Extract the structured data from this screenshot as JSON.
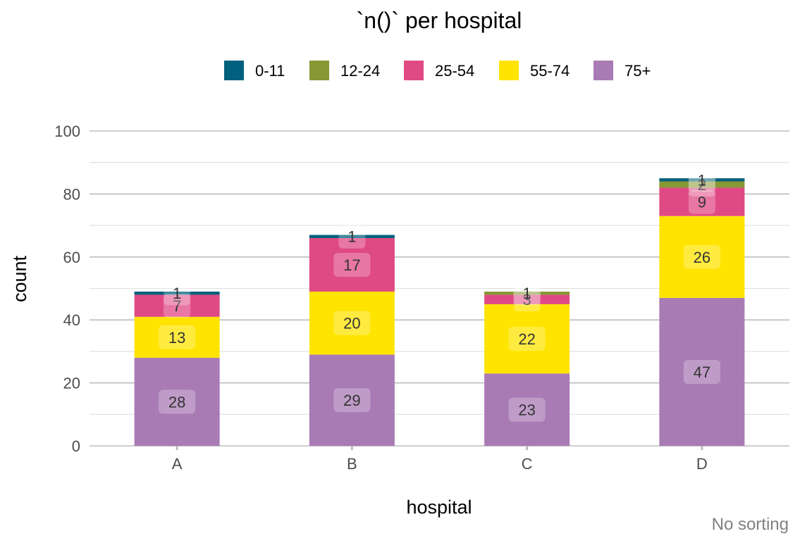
{
  "chart_data": {
    "type": "bar",
    "stacked": true,
    "title": "`n()` per hospital",
    "xlabel": "hospital",
    "ylabel": "count",
    "caption": "No sorting",
    "categories": [
      "A",
      "B",
      "C",
      "D"
    ],
    "ylim": [
      0,
      100
    ],
    "yticks": [
      0,
      20,
      40,
      60,
      80,
      100
    ],
    "grid": true,
    "legend_position": "top",
    "series": [
      {
        "name": "75+",
        "color": "#A87BB5",
        "values": [
          28,
          29,
          23,
          47
        ]
      },
      {
        "name": "55-74",
        "color": "#FFE400",
        "values": [
          13,
          20,
          22,
          26
        ]
      },
      {
        "name": "25-54",
        "color": "#E04A84",
        "values": [
          7,
          17,
          3,
          9
        ]
      },
      {
        "name": "12-24",
        "color": "#879834",
        "values": [
          0,
          0,
          1,
          2
        ]
      },
      {
        "name": "0-11",
        "color": "#00607D",
        "values": [
          1,
          1,
          0,
          1
        ]
      }
    ],
    "legend_order": [
      "0-11",
      "12-24",
      "25-54",
      "55-74",
      "75+"
    ]
  }
}
